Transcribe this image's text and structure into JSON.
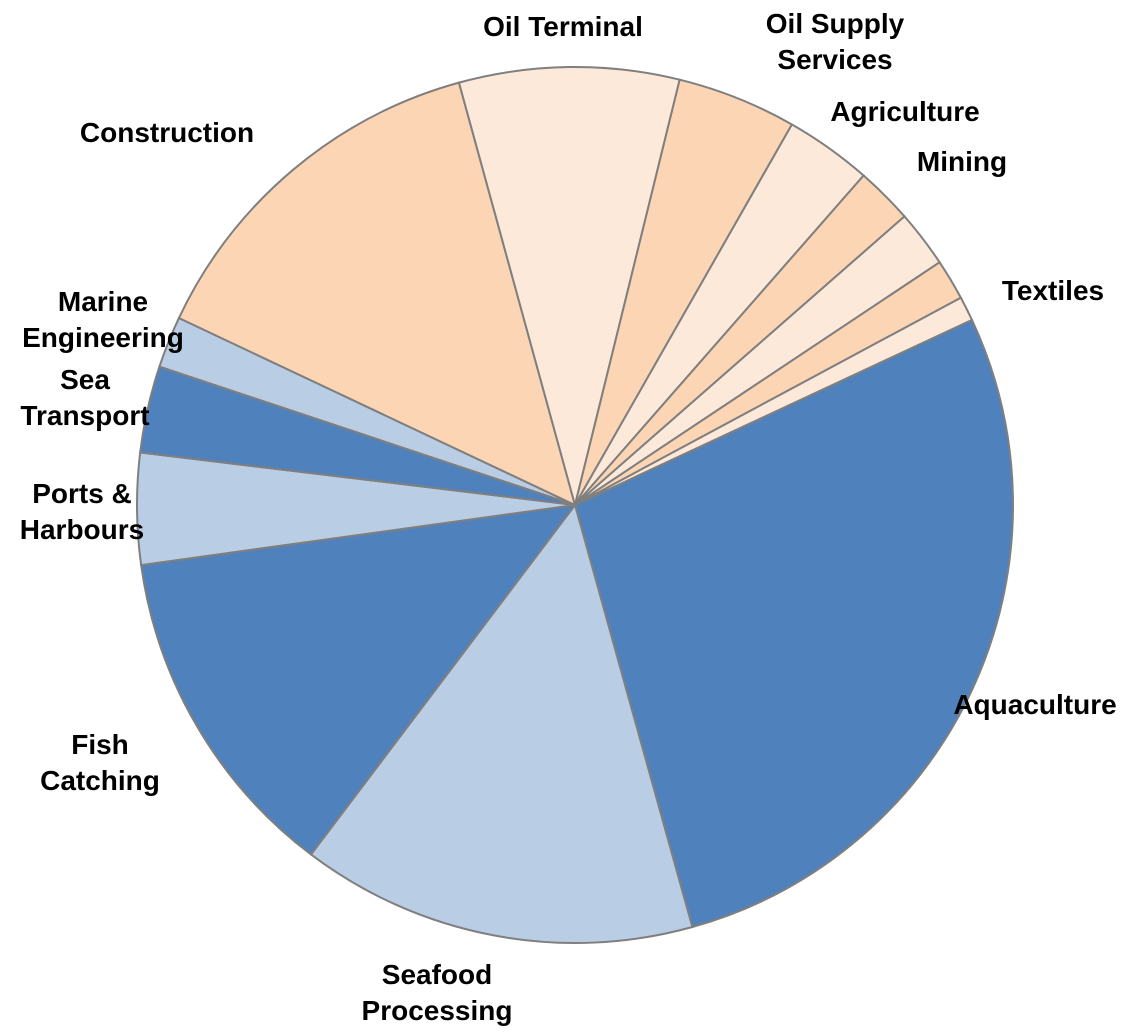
{
  "chart_data": {
    "type": "pie",
    "categories": [
      "Aquaculture",
      "Seafood Processing",
      "Fish Catching",
      "Ports & Harbours",
      "Sea Transport",
      "Marine Engineering",
      "Construction",
      "Oil Terminal",
      "Oil Supply Services",
      "Agriculture",
      "Mining",
      null,
      null,
      "Textiles"
    ],
    "values": [
      27.6,
      14.6,
      12.5,
      4.1,
      3.2,
      1.9,
      13.7,
      8.1,
      4.4,
      3.2,
      2.1,
      2.1,
      1.5,
      0.9
    ],
    "colors": [
      "#4f81bd",
      "#b9cde5",
      "#4f81bd",
      "#b9cde5",
      "#4f81bd",
      "#b9cde5",
      "#fcd5b5",
      "#fde9d9",
      "#fcd5b5",
      "#fde9d9",
      "#fcd5b5",
      "#fde9d9",
      "#fcd5b5",
      "#fde9d9"
    ],
    "start_angle": 65
  }
}
